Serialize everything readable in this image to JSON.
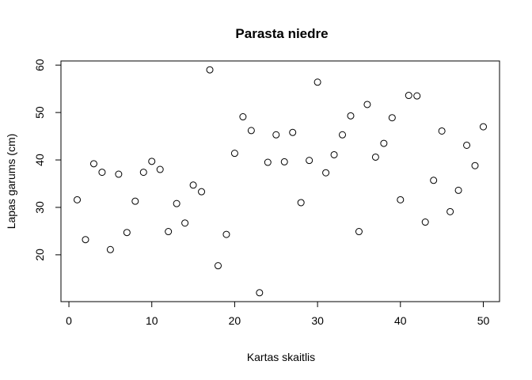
{
  "chart_data": {
    "type": "scatter",
    "title": "Parasta niedre",
    "xlabel": "Kartas skaitlis",
    "ylabel": "Lapas garums (cm)",
    "xlim": [
      -0.96,
      51.96
    ],
    "ylim": [
      10.13,
      60.87
    ],
    "xticks": [
      0,
      10,
      20,
      30,
      40,
      50
    ],
    "yticks": [
      20,
      30,
      40,
      50,
      60
    ],
    "grid": false,
    "point_style": "open circle",
    "x": [
      1,
      2,
      3,
      4,
      5,
      6,
      7,
      8,
      9,
      10,
      11,
      12,
      13,
      14,
      15,
      16,
      17,
      18,
      19,
      20,
      21,
      22,
      23,
      24,
      25,
      26,
      27,
      28,
      29,
      30,
      31,
      32,
      33,
      34,
      35,
      36,
      37,
      38,
      39,
      40,
      41,
      42,
      43,
      44,
      45,
      46,
      47,
      48,
      49,
      50
    ],
    "y": [
      31.6,
      23.2,
      39.2,
      37.4,
      21.1,
      37.0,
      24.7,
      31.3,
      37.4,
      39.7,
      38.0,
      24.9,
      30.8,
      26.7,
      34.7,
      33.3,
      59.0,
      17.7,
      24.3,
      41.4,
      49.1,
      46.2,
      12.0,
      39.5,
      45.3,
      39.6,
      45.8,
      31.0,
      39.9,
      56.4,
      37.3,
      41.1,
      45.3,
      49.3,
      24.9,
      51.7,
      40.6,
      43.5,
      48.9,
      31.6,
      53.6,
      53.5,
      26.9,
      35.7,
      46.1,
      29.1,
      33.6,
      43.1,
      38.8,
      47.0
    ]
  }
}
